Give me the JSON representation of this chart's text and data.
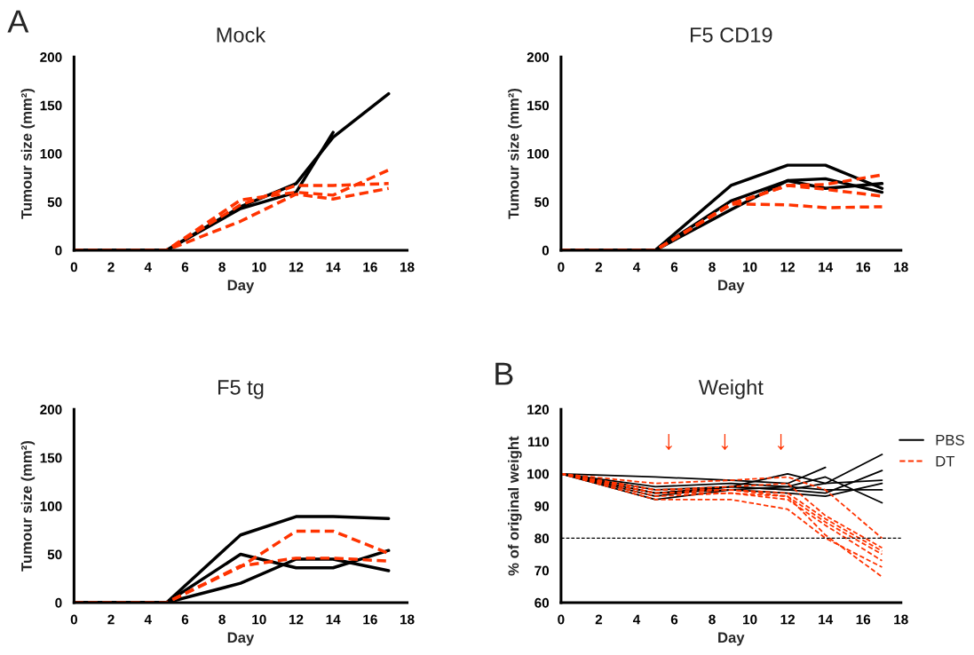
{
  "chart_data": [
    {
      "type": "line",
      "title": "Mock",
      "xlabel": "Day",
      "ylabel": "Tumour size (mm²)",
      "annotations": [
        "A"
      ],
      "x": [
        0,
        5,
        9,
        12,
        14,
        17
      ],
      "xlim": [
        0,
        18
      ],
      "xticks": [
        0,
        2,
        4,
        6,
        8,
        10,
        12,
        14,
        16,
        18
      ],
      "ylim": [
        0,
        200
      ],
      "yticks": [
        0,
        50,
        100,
        150,
        200
      ],
      "grid": false,
      "legend": false,
      "series": [
        {
          "color": "#000000",
          "line_style": "solid",
          "values": [
            0,
            0,
            45,
            69,
            117,
            162
          ]
        },
        {
          "color": "#000000",
          "line_style": "solid",
          "values": [
            0,
            0,
            43,
            60,
            122,
            null
          ]
        },
        {
          "color": "#ff3300",
          "line_style": "dashed",
          "values": [
            0,
            0,
            47,
            67,
            67,
            69
          ]
        },
        {
          "color": "#ff3300",
          "line_style": "dashed",
          "values": [
            0,
            0,
            52,
            60,
            57,
            83
          ]
        },
        {
          "color": "#ff3300",
          "line_style": "dashed",
          "values": [
            0,
            0,
            30,
            58,
            53,
            64
          ]
        }
      ]
    },
    {
      "type": "line",
      "title": "F5 CD19",
      "xlabel": "Day",
      "ylabel": "Tumour size (mm²)",
      "x": [
        0,
        5,
        9,
        12,
        14,
        17
      ],
      "xlim": [
        0,
        18
      ],
      "xticks": [
        0,
        2,
        4,
        6,
        8,
        10,
        12,
        14,
        16,
        18
      ],
      "ylim": [
        0,
        200
      ],
      "yticks": [
        0,
        50,
        100,
        150,
        200
      ],
      "grid": false,
      "legend": false,
      "series": [
        {
          "color": "#000000",
          "line_style": "solid",
          "values": [
            0,
            0,
            67,
            88,
            88,
            64
          ]
        },
        {
          "color": "#000000",
          "line_style": "solid",
          "values": [
            0,
            0,
            51,
            72,
            74,
            60
          ]
        },
        {
          "color": "#000000",
          "line_style": "solid",
          "values": [
            0,
            0,
            42,
            72,
            64,
            69
          ]
        },
        {
          "color": "#ff3300",
          "line_style": "dashed",
          "values": [
            0,
            0,
            48,
            67,
            68,
            78
          ]
        },
        {
          "color": "#ff3300",
          "line_style": "dashed",
          "values": [
            0,
            0,
            47,
            67,
            63,
            56
          ]
        },
        {
          "color": "#ff3300",
          "line_style": "dashed",
          "values": [
            0,
            0,
            48,
            47,
            44,
            45
          ]
        }
      ]
    },
    {
      "type": "line",
      "title": "F5 tg",
      "xlabel": "Day",
      "ylabel": "Tumour size (mm²)",
      "x": [
        0,
        5,
        9,
        12,
        14,
        17
      ],
      "xlim": [
        0,
        18
      ],
      "xticks": [
        0,
        2,
        4,
        6,
        8,
        10,
        12,
        14,
        16,
        18
      ],
      "ylim": [
        0,
        200
      ],
      "yticks": [
        0,
        50,
        100,
        150,
        200
      ],
      "grid": false,
      "legend": false,
      "series": [
        {
          "color": "#000000",
          "line_style": "solid",
          "values": [
            0,
            0,
            70,
            89,
            89,
            87
          ]
        },
        {
          "color": "#000000",
          "line_style": "solid",
          "values": [
            0,
            0,
            50,
            36,
            36,
            54
          ]
        },
        {
          "color": "#000000",
          "line_style": "solid",
          "values": [
            0,
            0,
            20,
            45,
            45,
            33
          ]
        },
        {
          "color": "#ff3300",
          "line_style": "dashed",
          "values": [
            0,
            0,
            37,
            74,
            74,
            51
          ]
        },
        {
          "color": "#ff3300",
          "line_style": "dashed",
          "values": [
            0,
            0,
            38,
            46,
            46,
            43
          ]
        }
      ]
    },
    {
      "type": "line",
      "title": "Weight",
      "xlabel": "Day",
      "ylabel": "% of original weight",
      "annotations": [
        "B",
        "↓",
        "↓",
        "↓"
      ],
      "x": [
        0,
        5,
        9,
        12,
        14,
        17
      ],
      "xlim": [
        0,
        18
      ],
      "xticks": [
        0,
        2,
        4,
        6,
        8,
        10,
        12,
        14,
        16,
        18
      ],
      "ylim": [
        60,
        120
      ],
      "yticks": [
        60,
        70,
        80,
        90,
        100,
        110,
        120
      ],
      "grid": false,
      "legend": "right",
      "ref_lines": [
        {
          "axis": "y",
          "value": 80,
          "color": "#000000",
          "line_style": "dashed"
        }
      ],
      "series": [
        {
          "name": "PBS",
          "color": "#000000",
          "line_style": "solid",
          "values": [
            100,
            99,
            98,
            97,
            102,
            null
          ]
        },
        {
          "color": "#000000",
          "line_style": "solid",
          "values": [
            100,
            95,
            96,
            100,
            97,
            106
          ]
        },
        {
          "color": "#000000",
          "line_style": "solid",
          "values": [
            100,
            94,
            95,
            96,
            99,
            91
          ]
        },
        {
          "color": "#000000",
          "line_style": "solid",
          "values": [
            100,
            93,
            96,
            95,
            94,
            101
          ]
        },
        {
          "color": "#000000",
          "line_style": "solid",
          "values": [
            100,
            92,
            95,
            94,
            93,
            97
          ]
        },
        {
          "color": "#000000",
          "line_style": "solid",
          "values": [
            100,
            94,
            96,
            95,
            97,
            98
          ]
        },
        {
          "color": "#000000",
          "line_style": "solid",
          "values": [
            100,
            96,
            97,
            96,
            95,
            95
          ]
        },
        {
          "name": "DT",
          "color": "#ff3300",
          "line_style": "dashed",
          "values": [
            100,
            97,
            98,
            99,
            95,
            80
          ]
        },
        {
          "color": "#ff3300",
          "line_style": "dashed",
          "values": [
            100,
            95,
            96,
            97,
            87,
            77
          ]
        },
        {
          "color": "#ff3300",
          "line_style": "dashed",
          "values": [
            100,
            94,
            95,
            94,
            86,
            76
          ]
        },
        {
          "color": "#ff3300",
          "line_style": "dashed",
          "values": [
            100,
            93,
            94,
            93,
            85,
            75
          ]
        },
        {
          "color": "#ff3300",
          "line_style": "dashed",
          "values": [
            100,
            94,
            94,
            92,
            84,
            73
          ]
        },
        {
          "color": "#ff3300",
          "line_style": "dashed",
          "values": [
            100,
            92,
            92,
            89,
            80,
            71
          ]
        },
        {
          "color": "#ff3300",
          "line_style": "dashed",
          "values": [
            100,
            95,
            95,
            93,
            81,
            68
          ]
        }
      ]
    }
  ]
}
